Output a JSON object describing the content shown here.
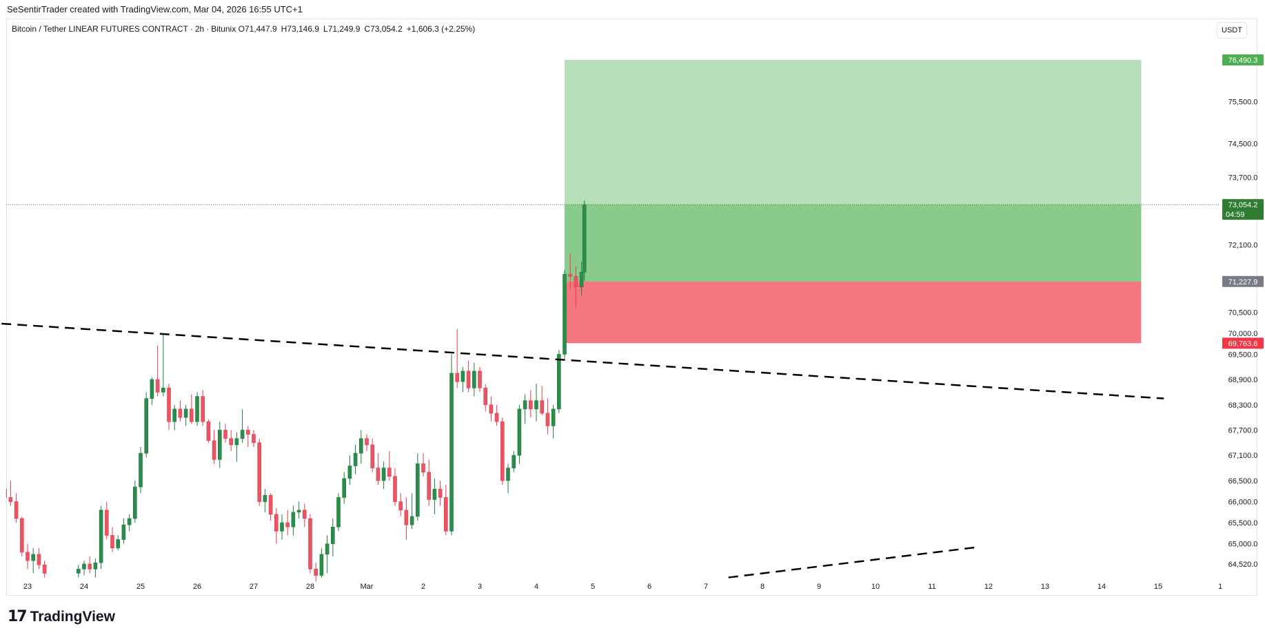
{
  "header": {
    "creator": "SeSentirTrader created with TradingView.com, Mar 04, 2026 16:55 UTC+1",
    "symbol": "Bitcoin / Tether LINEAR FUTURES CONTRACT",
    "interval": "2h",
    "exchange": "Bitunix",
    "open": "O71,447.9",
    "high": "H73,146.9",
    "low": "L71,249.9",
    "close": "C73,054.2",
    "change": "+1,606.3 (+2.25%)",
    "currency": "USDT"
  },
  "footer": {
    "logo_mark": "17",
    "logo_text": "TradingView"
  },
  "colors": {
    "up": "#22ab94",
    "up_body": "#1e7d3a",
    "down": "#f23645",
    "target_zone": "#b6deb8",
    "target_zone_inner": "#88cb8a",
    "stop_zone": "#f47780",
    "target_label": "#4caf50",
    "stop_label": "#f23645",
    "entry_label": "#787b86",
    "last_price_label": "#2e7d32"
  },
  "chart_data": {
    "type": "candlestick",
    "symbol": "Bitcoin / Tether LINEAR FUTURES CONTRACT",
    "interval": "2h",
    "y_axis": {
      "ylim": [
        64250,
        77400
      ],
      "ticks": [
        "75,500.0",
        "74,500.0",
        "73,700.0",
        "72,100.0",
        "70,500.0",
        "70,000.0",
        "69,500.0",
        "68,900.0",
        "68,300.0",
        "67,700.0",
        "67,100.0",
        "66,500.0",
        "66,000.0",
        "65,500.0",
        "65,000.0",
        "64,520.0"
      ],
      "tick_values": [
        75500,
        74500,
        73700,
        72100,
        70500,
        70000,
        69500,
        68900,
        68300,
        67700,
        67100,
        66500,
        66000,
        65500,
        65000,
        64520
      ]
    },
    "x_axis": {
      "ticks": [
        "23",
        "24",
        "25",
        "26",
        "27",
        "28",
        "Mar",
        "2",
        "3",
        "4",
        "5",
        "6",
        "7",
        "8",
        "9",
        "10",
        "11",
        "12",
        "13",
        "14",
        "15",
        "1"
      ],
      "tick_days": [
        -6,
        -5,
        -4,
        -3,
        -2,
        -1,
        0,
        1,
        2,
        3,
        4,
        5,
        6,
        7,
        8,
        9,
        10,
        11,
        12,
        13,
        14,
        15.1
      ]
    },
    "price_labels": {
      "target": "76,490.3",
      "last": "73,054.2",
      "countdown": "04:59",
      "entry": "71,227.9",
      "stop": "69,763.6"
    },
    "position": {
      "type": "long",
      "entry": 71227.9,
      "target": 76490.3,
      "stop": 69763.6,
      "start_day": 3.5,
      "end_day": 13.7
    },
    "last_price": 73054.2,
    "trendlines": [
      {
        "style": "dashed",
        "p1": [
          -7.3,
          70300
        ],
        "p2": [
          14.1,
          68450
        ]
      },
      {
        "style": "dashed",
        "p1": [
          6.4,
          64200
        ],
        "p2": [
          10.8,
          64920
        ]
      }
    ],
    "candles": [
      [
        -7.3,
        67720,
        67780,
        67150,
        67580
      ],
      [
        -7.2,
        67580,
        67700,
        67300,
        67400
      ],
      [
        -7.1,
        67400,
        67560,
        67350,
        67520
      ],
      [
        -7.0,
        67520,
        67760,
        67480,
        67650
      ],
      [
        -6.9,
        67650,
        67720,
        64200,
        64600
      ],
      [
        -6.8,
        64600,
        65000,
        64300,
        64820
      ],
      [
        -6.7,
        64820,
        65250,
        64650,
        65050
      ],
      [
        -6.6,
        65050,
        65900,
        64950,
        65800
      ],
      [
        -6.5,
        65800,
        66400,
        65700,
        66300
      ],
      [
        -6.4,
        66300,
        66550,
        66000,
        66100
      ],
      [
        -6.3,
        66100,
        66500,
        65900,
        66000
      ],
      [
        -6.2,
        66000,
        66200,
        65500,
        65600
      ],
      [
        -6.1,
        65600,
        65650,
        64700,
        64800
      ],
      [
        -6.0,
        64800,
        65000,
        64400,
        64600
      ],
      [
        -5.9,
        64600,
        64900,
        64300,
        64750
      ],
      [
        -5.8,
        64750,
        64900,
        64400,
        64500
      ],
      [
        -5.7,
        64500,
        64600,
        64200,
        64300
      ],
      [
        -5.1,
        64300,
        64500,
        64200,
        64400
      ],
      [
        -5.0,
        64400,
        64600,
        64250,
        64520
      ],
      [
        -4.9,
        64520,
        64700,
        64300,
        64400
      ],
      [
        -4.8,
        64400,
        64650,
        64200,
        64550
      ],
      [
        -4.7,
        64550,
        65900,
        64400,
        65800
      ],
      [
        -4.6,
        65800,
        66000,
        65100,
        65200
      ],
      [
        -4.5,
        65200,
        65400,
        64800,
        64900
      ],
      [
        -4.4,
        64900,
        65200,
        64850,
        65100
      ],
      [
        -4.3,
        65100,
        65600,
        65000,
        65450
      ],
      [
        -4.2,
        65450,
        65700,
        65300,
        65600
      ],
      [
        -4.1,
        65600,
        66500,
        65500,
        66350
      ],
      [
        -4.0,
        66350,
        67300,
        66200,
        67150
      ],
      [
        -3.9,
        67150,
        68600,
        67050,
        68450
      ],
      [
        -3.8,
        68450,
        68950,
        68300,
        68900
      ],
      [
        -3.7,
        68900,
        69700,
        68500,
        68600
      ],
      [
        -3.6,
        68600,
        70000,
        68500,
        68700
      ],
      [
        -3.5,
        68700,
        68800,
        67700,
        67900
      ],
      [
        -3.4,
        67900,
        68300,
        67700,
        68200
      ],
      [
        -3.3,
        68200,
        68400,
        67900,
        68000
      ],
      [
        -3.2,
        68000,
        68300,
        67800,
        68200
      ],
      [
        -3.1,
        68200,
        68550,
        67850,
        67900
      ],
      [
        -3.0,
        67900,
        68600,
        67800,
        68500
      ],
      [
        -2.9,
        68500,
        68650,
        67800,
        67900
      ],
      [
        -2.8,
        67900,
        67950,
        67400,
        67450
      ],
      [
        -2.7,
        67450,
        67700,
        66900,
        67000
      ],
      [
        -2.6,
        67000,
        67900,
        66800,
        67700
      ],
      [
        -2.5,
        67700,
        67850,
        67400,
        67500
      ],
      [
        -2.4,
        67500,
        67700,
        67200,
        67350
      ],
      [
        -2.3,
        67350,
        67650,
        66950,
        67500
      ],
      [
        -2.2,
        67500,
        68200,
        67400,
        67700
      ],
      [
        -2.1,
        67700,
        67800,
        67300,
        67600
      ],
      [
        -2.0,
        67600,
        67700,
        67300,
        67400
      ],
      [
        -1.9,
        67400,
        67500,
        65900,
        66000
      ],
      [
        -1.8,
        66000,
        66300,
        65750,
        66150
      ],
      [
        -1.7,
        66150,
        66200,
        65550,
        65700
      ],
      [
        -1.6,
        65700,
        65850,
        65000,
        65300
      ],
      [
        -1.5,
        65300,
        65700,
        65100,
        65500
      ],
      [
        -1.4,
        65500,
        65800,
        65200,
        65400
      ],
      [
        -1.3,
        65400,
        65900,
        65200,
        65750
      ],
      [
        -1.2,
        65750,
        66000,
        65600,
        65800
      ],
      [
        -1.1,
        65800,
        65950,
        65400,
        65600
      ],
      [
        -1.0,
        65600,
        65700,
        64300,
        64400
      ],
      [
        -0.9,
        64400,
        64550,
        64100,
        64250
      ],
      [
        -0.8,
        64250,
        64900,
        64200,
        64750
      ],
      [
        -0.7,
        64750,
        65200,
        64300,
        65000
      ],
      [
        -0.6,
        65000,
        65600,
        64700,
        65400
      ],
      [
        -0.5,
        65400,
        66200,
        65300,
        66100
      ],
      [
        -0.4,
        66100,
        66700,
        65950,
        66550
      ],
      [
        -0.3,
        66550,
        67100,
        66400,
        66850
      ],
      [
        -0.2,
        66850,
        67350,
        66650,
        67150
      ],
      [
        -0.1,
        67150,
        67700,
        66900,
        67500
      ],
      [
        0.0,
        67500,
        67600,
        67200,
        67350
      ],
      [
        0.1,
        67350,
        67500,
        66700,
        66800
      ],
      [
        0.2,
        66800,
        67150,
        66400,
        66500
      ],
      [
        0.3,
        66500,
        66950,
        66300,
        66800
      ],
      [
        0.4,
        66800,
        67200,
        66500,
        66600
      ],
      [
        0.5,
        66600,
        66800,
        65900,
        66000
      ],
      [
        0.6,
        66000,
        66200,
        65650,
        65800
      ],
      [
        0.7,
        65800,
        66100,
        65100,
        65450
      ],
      [
        0.8,
        65450,
        66200,
        65350,
        65650
      ],
      [
        0.9,
        65650,
        67150,
        65550,
        66900
      ],
      [
        1.0,
        66900,
        67150,
        66600,
        66700
      ],
      [
        1.1,
        66700,
        67000,
        65900,
        66050
      ],
      [
        1.2,
        66050,
        66550,
        65700,
        66300
      ],
      [
        1.3,
        66300,
        66500,
        65900,
        66100
      ],
      [
        1.4,
        66100,
        66400,
        65200,
        65300
      ],
      [
        1.5,
        65300,
        69500,
        65200,
        69050
      ],
      [
        1.6,
        69050,
        70100,
        68700,
        68850
      ],
      [
        1.7,
        68850,
        69200,
        68600,
        69100
      ],
      [
        1.8,
        69100,
        69350,
        68600,
        68700
      ],
      [
        1.9,
        68700,
        69300,
        68500,
        69100
      ],
      [
        2.0,
        69100,
        69200,
        68600,
        68700
      ],
      [
        2.1,
        68700,
        68800,
        68150,
        68300
      ],
      [
        2.2,
        68300,
        68500,
        67900,
        68100
      ],
      [
        2.3,
        68100,
        68300,
        67800,
        67900
      ],
      [
        2.4,
        67900,
        68000,
        66400,
        66500
      ],
      [
        2.5,
        66500,
        66900,
        66200,
        66800
      ],
      [
        2.6,
        66800,
        67200,
        66700,
        67100
      ],
      [
        2.7,
        67100,
        68300,
        66900,
        68200
      ],
      [
        2.8,
        68200,
        68550,
        67850,
        68400
      ],
      [
        2.9,
        68400,
        68650,
        68000,
        68200
      ],
      [
        3.0,
        68200,
        68800,
        67900,
        68400
      ],
      [
        3.1,
        68400,
        68750,
        68050,
        68100
      ],
      [
        3.2,
        68100,
        68450,
        67600,
        67800
      ],
      [
        3.3,
        67800,
        68300,
        67500,
        68200
      ],
      [
        3.4,
        68200,
        69600,
        68100,
        69500
      ],
      [
        3.5,
        69500,
        71500,
        69400,
        71400
      ],
      [
        3.6,
        71400,
        71900,
        71050,
        71350
      ],
      [
        3.7,
        71350,
        71600,
        70600,
        71100
      ],
      [
        3.8,
        71100,
        71700,
        70900,
        71447.9
      ],
      [
        3.85,
        71447.9,
        73146.9,
        71249.9,
        73054.2
      ]
    ]
  }
}
